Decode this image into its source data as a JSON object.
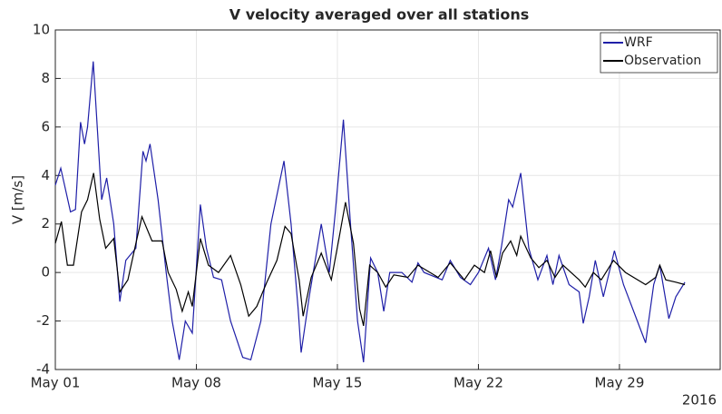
{
  "chart_data": {
    "type": "line",
    "title": "V velocity averaged over all stations",
    "ylabel": "V [m/s]",
    "year_label": "2016",
    "xlim": [
      0,
      33
    ],
    "xticks": [
      {
        "value": 0,
        "label": "May 01"
      },
      {
        "value": 7,
        "label": "May 08"
      },
      {
        "value": 14,
        "label": "May 15"
      },
      {
        "value": 21,
        "label": "May 22"
      },
      {
        "value": 28,
        "label": "May 29"
      }
    ],
    "ylim": [
      -4,
      10
    ],
    "yticks": [
      -4,
      -2,
      0,
      2,
      4,
      6,
      8,
      10
    ],
    "grid": true,
    "legend": "top-right",
    "series": [
      {
        "name": "WRF",
        "color": "#1f1fa8",
        "x": [
          0,
          0.27,
          0.75,
          1.0,
          1.25,
          1.45,
          1.6,
          1.88,
          2.3,
          2.55,
          2.9,
          3.2,
          3.5,
          4.0,
          4.35,
          4.5,
          4.7,
          5.1,
          5.5,
          5.8,
          6.15,
          6.45,
          6.8,
          7.2,
          7.5,
          7.85,
          8.25,
          8.7,
          9.3,
          9.7,
          10.2,
          10.7,
          11.35,
          11.7,
          12.05,
          12.2,
          12.6,
          13.2,
          13.6,
          13.9,
          14.3,
          14.65,
          15.0,
          15.3,
          15.65,
          16.0,
          16.3,
          16.6,
          17.2,
          17.7,
          18.0,
          18.3,
          19.2,
          19.6,
          20.1,
          20.6,
          21.0,
          21.5,
          21.85,
          22.15,
          22.5,
          22.7,
          23.1,
          23.5,
          23.95,
          24.4,
          24.7,
          25.0,
          25.5,
          26.0,
          26.2,
          26.5,
          26.8,
          27.2,
          27.75,
          28.2,
          29.3,
          29.7,
          30.0,
          30.45,
          30.8,
          31.25
        ],
        "values": [
          3.6,
          4.3,
          2.5,
          2.6,
          6.2,
          5.3,
          6.0,
          8.7,
          3.0,
          3.9,
          2.0,
          -1.2,
          0.5,
          1.0,
          5.0,
          4.6,
          5.3,
          3.0,
          0,
          -2.0,
          -3.6,
          -2.0,
          -2.5,
          2.8,
          1.0,
          -0.2,
          -0.3,
          -2.0,
          -3.5,
          -3.6,
          -2.0,
          2.0,
          4.6,
          2.0,
          -1.5,
          -3.3,
          -1.0,
          2.0,
          0,
          2.5,
          6.3,
          2.0,
          -2.0,
          -3.7,
          0.6,
          0,
          -1.6,
          0,
          0,
          -0.4,
          0.4,
          0,
          -0.3,
          0.5,
          -0.2,
          -0.5,
          0,
          1.0,
          -0.3,
          1.1,
          3.0,
          2.7,
          4.1,
          1.0,
          -0.3,
          0.7,
          -0.5,
          0.7,
          -0.5,
          -0.8,
          -2.1,
          -1.0,
          0.5,
          -1.0,
          0.9,
          -0.5,
          -2.9,
          -0.5,
          0.3,
          -1.9,
          -1.0,
          -0.4
        ]
      },
      {
        "name": "Observation",
        "color": "#000000",
        "x": [
          0,
          0.3,
          0.6,
          0.9,
          1.3,
          1.6,
          1.9,
          2.2,
          2.5,
          2.9,
          3.2,
          3.6,
          4.0,
          4.3,
          4.8,
          5.3,
          5.6,
          6.0,
          6.3,
          6.6,
          6.8,
          7.2,
          7.6,
          8.1,
          8.7,
          9.2,
          9.6,
          10.0,
          10.5,
          11.0,
          11.4,
          11.7,
          12.1,
          12.3,
          12.7,
          13.2,
          13.7,
          14.1,
          14.4,
          14.8,
          15.1,
          15.3,
          15.6,
          16.0,
          16.4,
          16.8,
          17.5,
          18.0,
          19.0,
          19.6,
          20.3,
          20.8,
          21.3,
          21.6,
          21.9,
          22.2,
          22.6,
          22.9,
          23.1,
          23.6,
          24.0,
          24.4,
          24.8,
          25.2,
          26.0,
          26.3,
          26.7,
          27.1,
          27.7,
          28.3,
          29.3,
          29.8,
          30.0,
          30.3,
          30.8,
          31.25
        ],
        "values": [
          1.2,
          2.1,
          0.3,
          0.3,
          2.5,
          3.0,
          4.1,
          2.2,
          1.0,
          1.4,
          -0.8,
          -0.3,
          1.2,
          2.3,
          1.3,
          1.3,
          0,
          -0.7,
          -1.6,
          -0.8,
          -1.4,
          1.4,
          0.3,
          0,
          0.7,
          -0.5,
          -1.8,
          -1.4,
          -0.4,
          0.5,
          1.9,
          1.6,
          -0.3,
          -1.8,
          -0.2,
          0.8,
          -0.3,
          1.5,
          2.9,
          1.2,
          -1.5,
          -2.2,
          0.3,
          0,
          -0.6,
          -0.1,
          -0.2,
          0.3,
          -0.2,
          0.4,
          -0.3,
          0.3,
          0,
          0.9,
          -0.2,
          0.8,
          1.3,
          0.7,
          1.5,
          0.6,
          0.2,
          0.5,
          -0.2,
          0.3,
          -0.3,
          -0.6,
          0,
          -0.3,
          0.5,
          0,
          -0.5,
          -0.2,
          0.3,
          -0.3,
          -0.4,
          -0.5
        ]
      }
    ]
  }
}
